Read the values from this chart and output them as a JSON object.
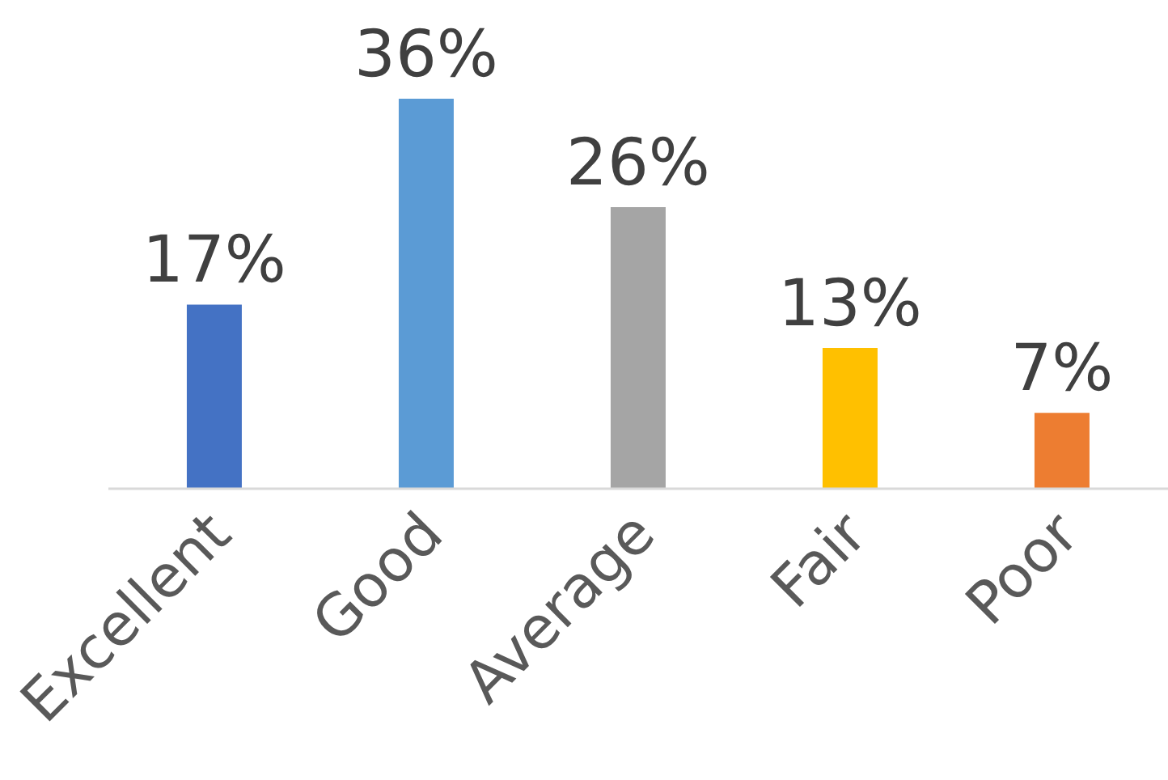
{
  "chart_data": {
    "type": "bar",
    "categories": [
      "Excellent",
      "Good",
      "Average",
      "Fair",
      "Poor"
    ],
    "values": [
      17,
      36,
      26,
      13,
      7
    ],
    "colors": [
      "#4472c4",
      "#5b9bd5",
      "#a5a5a5",
      "#ffc000",
      "#ed7d31"
    ],
    "value_labels": [
      "17%",
      "36%",
      "26%",
      "13%",
      "7%"
    ]
  }
}
